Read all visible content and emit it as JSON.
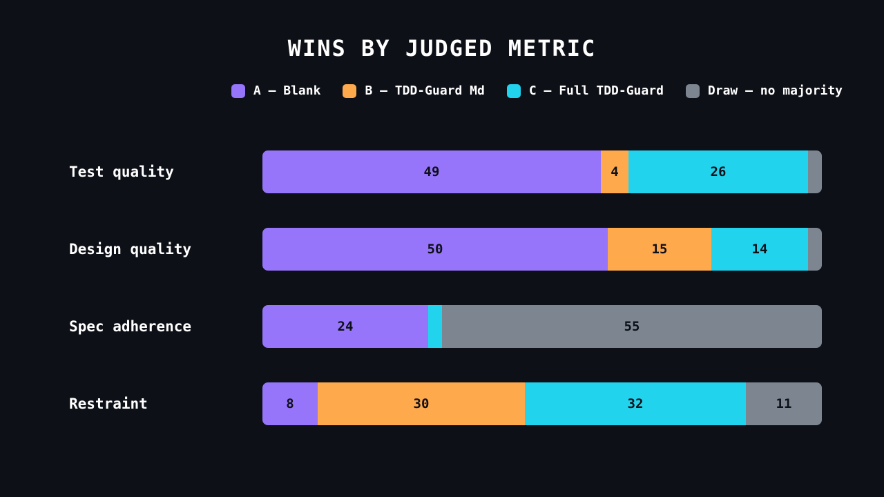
{
  "chart_data": {
    "type": "bar",
    "orientation": "horizontal",
    "stacked": true,
    "title": "WINS BY JUDGED METRIC",
    "categories": [
      "Test quality",
      "Design quality",
      "Spec adherence",
      "Restraint"
    ],
    "series": [
      {
        "name": "A – Blank",
        "color": "#9775fa",
        "values": [
          49,
          50,
          24,
          8
        ]
      },
      {
        "name": "B – TDD-Guard Md",
        "color": "#ffa94d",
        "values": [
          4,
          15,
          0,
          30
        ]
      },
      {
        "name": "C – Full TDD-Guard",
        "color": "#22d3ee",
        "values": [
          26,
          14,
          2,
          32
        ]
      },
      {
        "name": "Draw – no majority",
        "color": "#7d8590",
        "values": [
          2,
          2,
          55,
          11
        ]
      }
    ],
    "label_threshold": 4,
    "legend_position": "top-right",
    "grid": false
  }
}
